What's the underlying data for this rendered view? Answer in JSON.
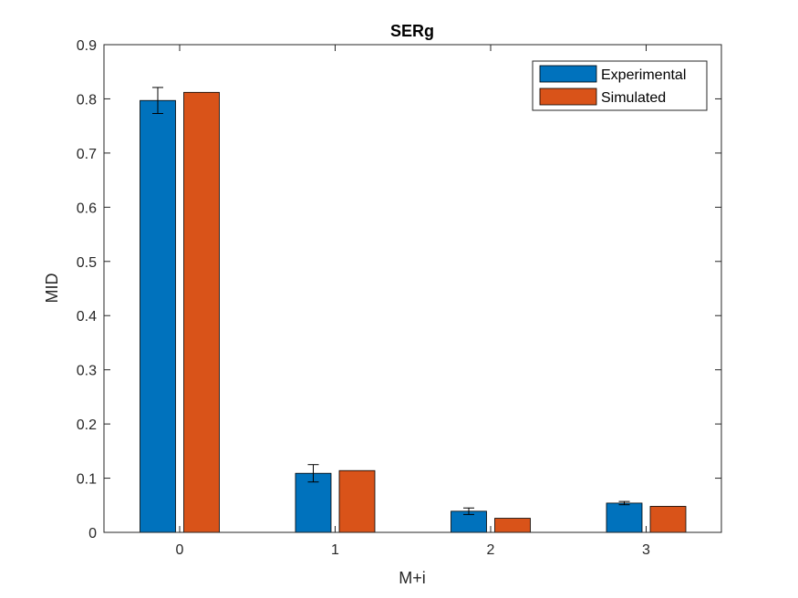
{
  "chart_data": {
    "type": "bar",
    "title": "SERg",
    "xlabel": "M+i",
    "ylabel": "MID",
    "categories": [
      "0",
      "1",
      "2",
      "3"
    ],
    "ylim": [
      0,
      0.9
    ],
    "yticks": [
      0,
      0.1,
      0.2,
      0.3,
      0.4,
      0.5,
      0.6,
      0.7,
      0.8,
      0.9
    ],
    "ytick_labels": [
      "0",
      "0.1",
      "0.2",
      "0.3",
      "0.4",
      "0.5",
      "0.6",
      "0.7",
      "0.8",
      "0.9"
    ],
    "grid": false,
    "legend_position": "top-right",
    "series": [
      {
        "name": "Experimental",
        "color": "#0072BD",
        "values": [
          0.797,
          0.109,
          0.039,
          0.054
        ],
        "error": [
          0.024,
          0.016,
          0.006,
          0.003
        ]
      },
      {
        "name": "Simulated",
        "color": "#D95319",
        "values": [
          0.812,
          0.114,
          0.026,
          0.048
        ]
      }
    ]
  }
}
